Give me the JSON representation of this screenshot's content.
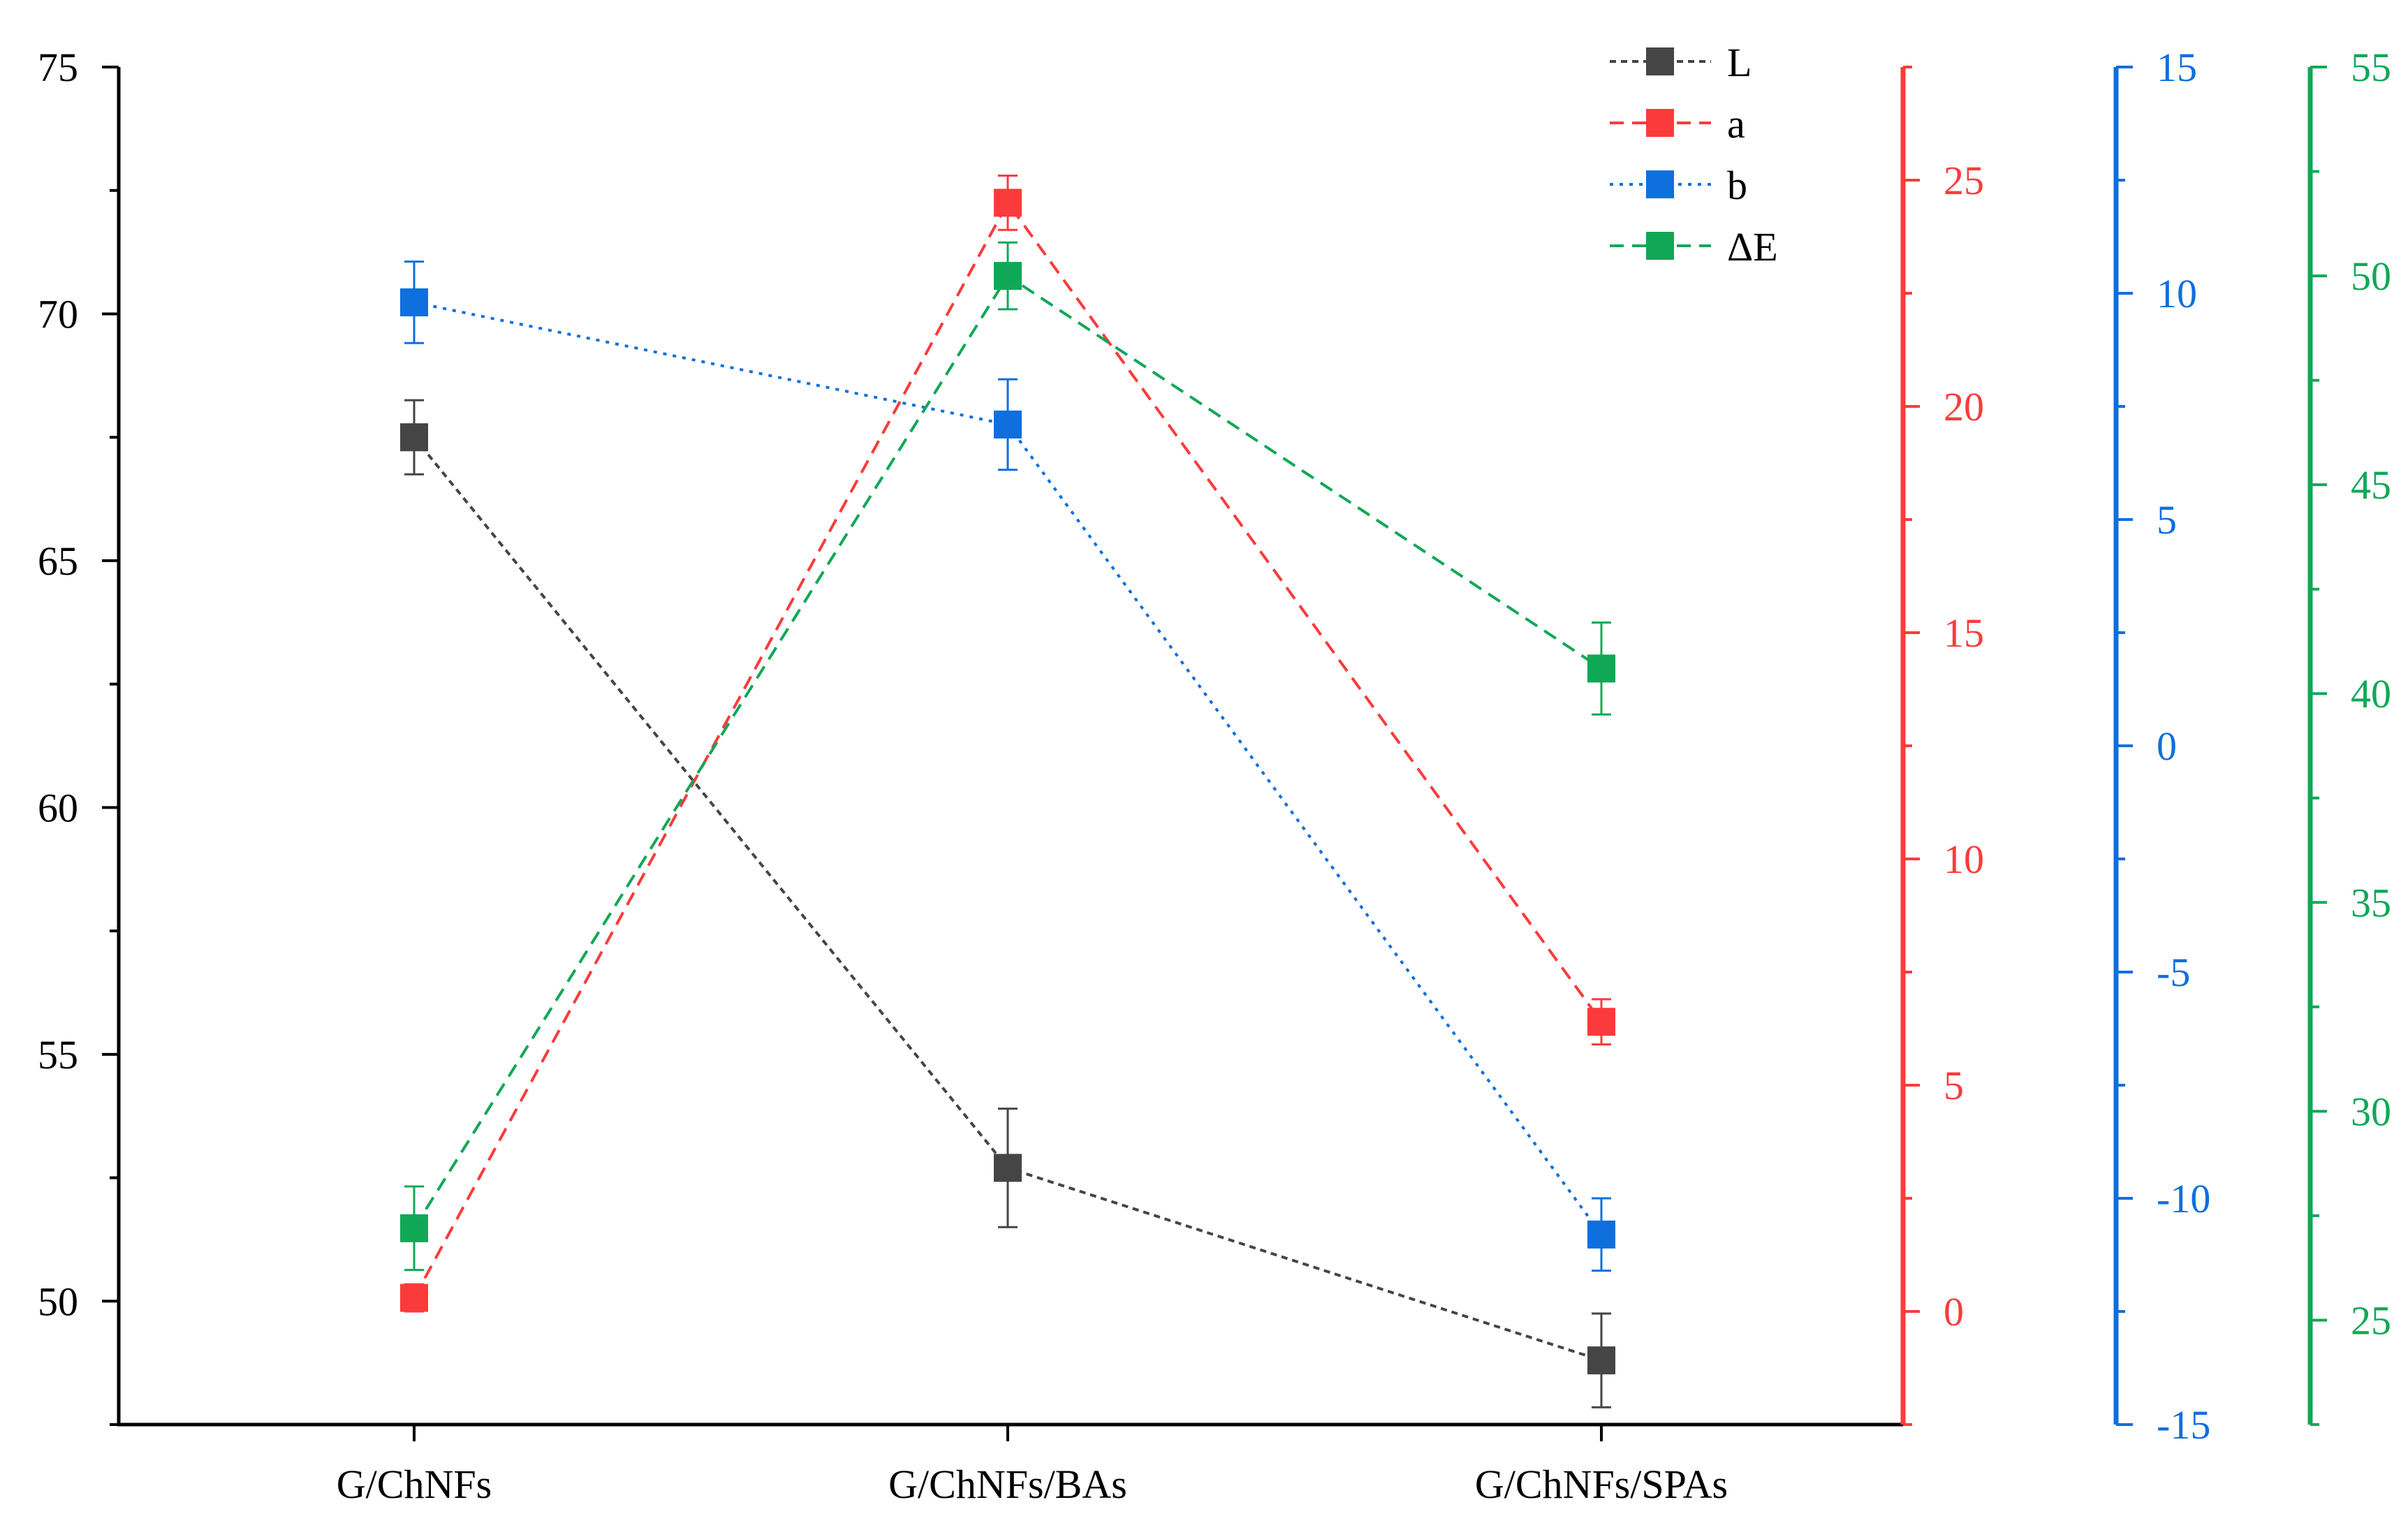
{
  "chart_data": {
    "type": "line",
    "title": "",
    "categories": [
      "G/ChNFs",
      "G/ChNFs/BAs",
      "G/ChNFs/SPAs"
    ],
    "xlabel": "",
    "axes": [
      {
        "id": "L",
        "side": "left",
        "range": [
          47.5,
          75
        ],
        "ticks": [
          50,
          55,
          60,
          65,
          70,
          75
        ],
        "tick_labels": [
          "50",
          "55",
          "60",
          "65",
          "70",
          "75"
        ],
        "color": "#000000"
      },
      {
        "id": "a",
        "side": "right",
        "range": [
          -2.5,
          27.5
        ],
        "ticks": [
          0,
          5,
          10,
          15,
          20,
          25
        ],
        "tick_labels": [
          "0",
          "5",
          "10",
          "15",
          "20",
          "25"
        ],
        "color": "#fb3b3b"
      },
      {
        "id": "b",
        "side": "right",
        "range": [
          -15,
          15
        ],
        "ticks": [
          -15,
          -10,
          -5,
          0,
          5,
          10,
          15
        ],
        "tick_labels": [
          "-15",
          "-10",
          "-5",
          "0",
          "5",
          "10",
          "15"
        ],
        "color": "#0e6fdd"
      },
      {
        "id": "dE",
        "side": "right",
        "range": [
          22.5,
          55
        ],
        "ticks": [
          25,
          30,
          35,
          40,
          45,
          50,
          55
        ],
        "tick_labels": [
          "25",
          "30",
          "35",
          "40",
          "45",
          "50",
          "55"
        ],
        "color": "#10a857"
      }
    ],
    "series": [
      {
        "name": "L",
        "axis": "L",
        "color": "#454545",
        "dash": "short",
        "values": [
          67.5,
          52.7,
          48.8
        ],
        "errors": [
          0.75,
          1.2,
          0.95
        ]
      },
      {
        "name": "a",
        "axis": "a",
        "color": "#fb3b3b",
        "dash": "long",
        "values": [
          0.3,
          24.5,
          6.4
        ],
        "errors": [
          0.3,
          0.6,
          0.5
        ]
      },
      {
        "name": "b",
        "axis": "b",
        "color": "#0e6fdd",
        "dash": "dot",
        "values": [
          9.8,
          7.1,
          -10.8
        ],
        "errors": [
          0.9,
          1.0,
          0.8
        ]
      },
      {
        "name": "ΔE",
        "axis": "dE",
        "color": "#10a857",
        "dash": "long",
        "values": [
          27.2,
          50.0,
          40.6
        ],
        "errors": [
          1.0,
          0.8,
          1.1
        ]
      }
    ],
    "legend": {
      "entries": [
        "L",
        "a",
        "b",
        "ΔE"
      ],
      "location": "top-right"
    }
  }
}
